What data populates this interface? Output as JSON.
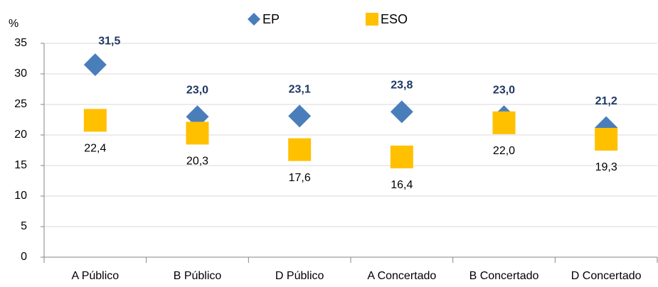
{
  "chart_data": {
    "type": "scatter",
    "y_axis_label": "%",
    "categories": [
      "A Público",
      "B Público",
      "D Público",
      "A Concertado",
      "B Concertado",
      "D Concertado"
    ],
    "series": [
      {
        "name": "EP",
        "color": "#4a7ebb",
        "marker": "diamond",
        "values": [
          31.5,
          23.0,
          23.1,
          23.8,
          23.0,
          21.2
        ],
        "value_labels": [
          "31,5",
          "23,0",
          "23,1",
          "23,8",
          "23,0",
          "21,2"
        ]
      },
      {
        "name": "ESO",
        "color": "#ffc000",
        "marker": "square",
        "values": [
          22.4,
          20.3,
          17.6,
          16.4,
          22.0,
          19.3
        ],
        "value_labels": [
          "22,4",
          "20,3",
          "17,6",
          "16,4",
          "22,0",
          "19,3"
        ]
      }
    ],
    "ylim": [
      0,
      35
    ],
    "yticks": [
      0,
      5,
      10,
      15,
      20,
      25,
      30,
      35
    ],
    "grid": true,
    "legend": "top"
  }
}
